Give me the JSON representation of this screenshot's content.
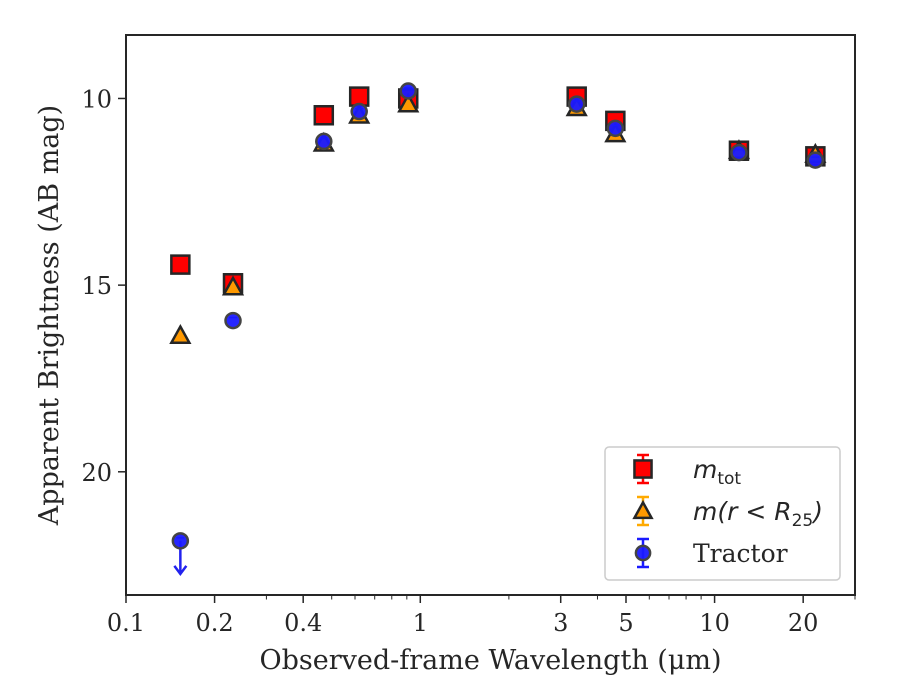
{
  "chart_data": {
    "type": "scatter",
    "title": "",
    "xlabel": "Observed-frame Wavelength (μm)",
    "ylabel": "Apparent Brightness (AB mag)",
    "xscale": "log",
    "xlim": [
      0.1,
      30
    ],
    "ylim": [
      23.3,
      8.3
    ],
    "y_inverted": true,
    "grid": false,
    "legend_position": "lower-right",
    "x_ticks": [
      {
        "value": 0.1,
        "label": "0.1"
      },
      {
        "value": 0.2,
        "label": "0.2"
      },
      {
        "value": 0.4,
        "label": "0.4"
      },
      {
        "value": 1,
        "label": "1"
      },
      {
        "value": 3,
        "label": "3"
      },
      {
        "value": 5,
        "label": "5"
      },
      {
        "value": 10,
        "label": "10"
      },
      {
        "value": 20,
        "label": "20"
      }
    ],
    "y_ticks": [
      {
        "value": 10,
        "label": "10"
      },
      {
        "value": 15,
        "label": "15"
      },
      {
        "value": 20,
        "label": "20"
      }
    ],
    "series": [
      {
        "name": "m_tot",
        "legend_parts": {
          "main": "m",
          "sub": "tot"
        },
        "marker": "square",
        "color": "#ff0000",
        "error_color": "#ff0000",
        "points": [
          {
            "x": 0.153,
            "y": 14.45
          },
          {
            "x": 0.231,
            "y": 14.95
          },
          {
            "x": 0.47,
            "y": 10.45
          },
          {
            "x": 0.62,
            "y": 9.95
          },
          {
            "x": 0.91,
            "y": 10.0
          },
          {
            "x": 3.4,
            "y": 9.95
          },
          {
            "x": 4.6,
            "y": 10.6
          },
          {
            "x": 12.1,
            "y": 11.4
          },
          {
            "x": 22.0,
            "y": 11.55
          }
        ]
      },
      {
        "name": "m(r < R25)",
        "legend_parts": {
          "main": "m(r < R",
          "sub": "25",
          "tail": ")"
        },
        "marker": "triangle",
        "color": "#ff9900",
        "error_color": "#ffaa00",
        "points": [
          {
            "x": 0.153,
            "y": 16.35
          },
          {
            "x": 0.231,
            "y": 15.05
          },
          {
            "x": 0.47,
            "y": 11.2
          },
          {
            "x": 0.62,
            "y": 10.45
          },
          {
            "x": 0.91,
            "y": 10.15
          },
          {
            "x": 3.4,
            "y": 10.25
          },
          {
            "x": 4.6,
            "y": 10.95
          },
          {
            "x": 12.1,
            "y": 11.4
          },
          {
            "x": 22.0,
            "y": 11.5
          }
        ]
      },
      {
        "name": "Tractor",
        "marker": "circle",
        "color": "#1a1aff",
        "error_color": "#1a1aff",
        "points": [
          {
            "x": 0.153,
            "y": 21.85,
            "upper_limit": true
          },
          {
            "x": 0.231,
            "y": 15.95
          },
          {
            "x": 0.47,
            "y": 11.15
          },
          {
            "x": 0.62,
            "y": 10.35
          },
          {
            "x": 0.91,
            "y": 9.8
          },
          {
            "x": 3.4,
            "y": 10.15
          },
          {
            "x": 4.6,
            "y": 10.8
          },
          {
            "x": 12.1,
            "y": 11.45
          },
          {
            "x": 22.0,
            "y": 11.65
          }
        ]
      }
    ]
  }
}
